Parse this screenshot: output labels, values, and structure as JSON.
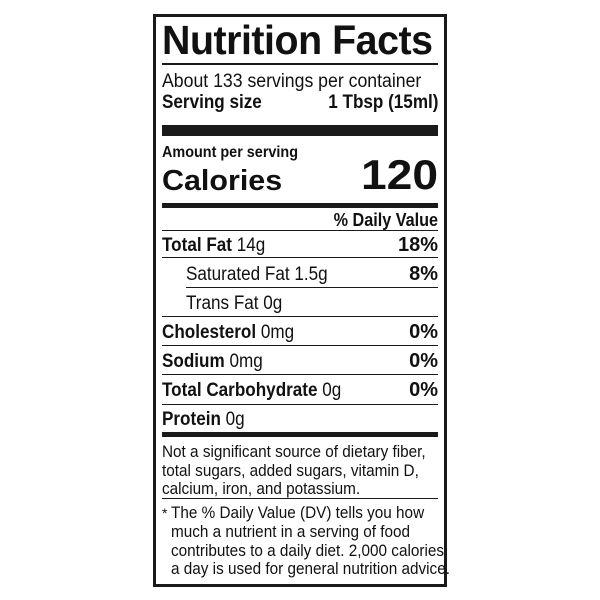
{
  "title": "Nutrition Facts",
  "servings_per_container": "About 133 servings per container",
  "serving_size": {
    "label": "Serving size",
    "value": "1 Tbsp (15ml)"
  },
  "amount_per_serving": "Amount per serving",
  "calories": {
    "label": "Calories",
    "value": "120"
  },
  "daily_value_header": "% Daily Value",
  "nutrients": [
    {
      "label": "Total Fat",
      "amount": "14g",
      "dv": "18%"
    },
    {
      "label": "Saturated Fat",
      "amount": "1.5g",
      "dv": "8%"
    },
    {
      "label": "Trans Fat",
      "amount": "0g",
      "dv": ""
    },
    {
      "label": "Cholesterol",
      "amount": "0mg",
      "dv": "0%"
    },
    {
      "label": "Sodium",
      "amount": "0mg",
      "dv": "0%"
    },
    {
      "label": "Total Carbohydrate",
      "amount": "0g",
      "dv": "0%"
    },
    {
      "label": "Protein",
      "amount": "0g",
      "dv": ""
    }
  ],
  "not_significant": [
    "Not a significant source of dietary fiber,",
    "total sugars, added sugars, vitamin D,",
    "calcium, iron, and potassium."
  ],
  "footnote": {
    "asterisk": "*",
    "lines": [
      "The % Daily Value (DV) tells you how",
      "much a nutrient in a serving of food",
      "contributes to a daily diet. 2,000 calories",
      "a day is used for general nutrition advice."
    ]
  }
}
